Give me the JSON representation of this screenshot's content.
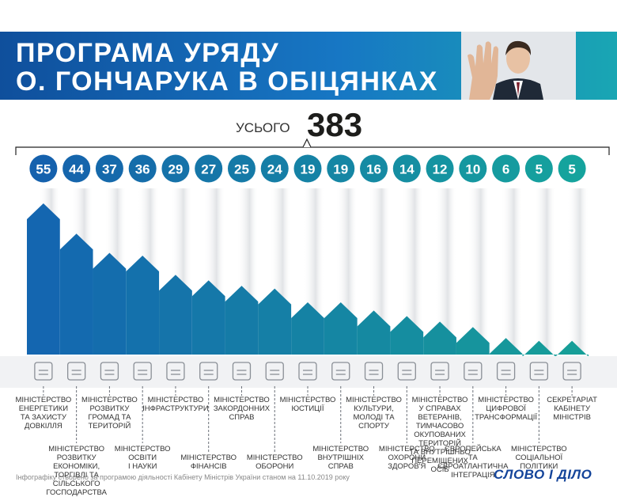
{
  "header": {
    "title_line1": "ПРОГРАМА УРЯДУ",
    "title_line2": "О. ГОНЧАРУКА В ОБІЦЯНКАХ"
  },
  "total": {
    "label": "УСЬОГО",
    "value": "383"
  },
  "colors": {
    "blue": "#1466b0",
    "teal": "#169e98",
    "circle_blue": "#1561ad",
    "circle_teal": "#15a39d"
  },
  "chart_data": {
    "type": "bar",
    "title": "ПРОГРАМА УРЯДУ О. ГОНЧАРУКА В ОБІЦЯНКАХ",
    "total": 383,
    "categories": [
      "МІНІСТЕРСТВО ЕНЕРГЕТИКИ ТА ЗАХИСТУ ДОВКІЛЛЯ",
      "МІНІСТЕРСТВО РОЗВИТКУ ЕКОНОМІКИ, ТОРГІВЛІ ТА СІЛЬСЬКОГО ГОСПОДАРСТВА",
      "МІНІСТЕРСТВО РОЗВИТКУ ГРОМАД ТА ТЕРИТОРІЙ",
      "МІНІСТЕРСТВО ОСВІТИ І НАУКИ",
      "МІНІСТЕРСТВО ІНФРАСТРУКТУРИ",
      "МІНІСТЕРСТВО ФІНАНСІВ",
      "МІНІСТЕРСТВО ЗАКОРДОННИХ СПРАВ",
      "МІНІСТЕРСТВО ОБОРОНИ",
      "МІНІСТЕРСТВО ЮСТИЦІЇ",
      "МІНІСТЕРСТВО ВНУТРІШНІХ СПРАВ",
      "МІНІСТЕРСТВО КУЛЬТУРИ, МОЛОДІ ТА СПОРТУ",
      "МІНІСТЕРСТВО ОХОРОНИ ЗДОРОВ'Я",
      "МІНІСТЕРСТВО У СПРАВАХ ВЕТЕРАНІВ, ТИМЧАСОВО ОКУПОВАНИХ ТЕРИТОРІЙ ТА ВНУТРІШНЬО ПЕРЕМІЩЕНИХ ОСІБ",
      "ЄВРОПЕЙСЬКА ТА ЄВРОАТЛАНТИЧНА ІНТЕГРАЦІЯ",
      "МІНІСТЕРСТВО ЦИФРОВОЇ ТРАНСФОРМАЦІЇ",
      "МІНІСТЕРСТВО СОЦІАЛЬНОЇ ПОЛІТИКИ",
      "СЕКРЕТАРІАТ КАБІНЕТУ МІНІСТРІВ"
    ],
    "values": [
      55,
      44,
      37,
      36,
      29,
      27,
      25,
      24,
      19,
      19,
      16,
      14,
      12,
      10,
      6,
      5,
      5
    ],
    "labels": [
      [
        "МІНІСТЕРСТВО",
        "ЕНЕРГЕТИКИ",
        "ТА ЗАХИСТУ",
        "ДОВКІЛЛЯ"
      ],
      [
        "МІНІСТЕРСТВО РОЗВИТКУ",
        "ЕКОНОМІКИ, ТОРГІВЛІ ТА",
        "СІЛЬСЬКОГО ГОСПОДАРСТВА"
      ],
      [
        "МІНІСТЕРСТВО",
        "РОЗВИТКУ",
        "ГРОМАД ТА",
        "ТЕРИТОРІЙ"
      ],
      [
        "МІНІСТЕРСТВО",
        "ОСВІТИ",
        "І НАУКИ"
      ],
      [
        "МІНІСТЕРСТВО",
        "ІНФРАСТРУКТУРИ"
      ],
      [
        "МІНІСТЕРСТВО",
        "ФІНАНСІВ"
      ],
      [
        "МІНІСТЕРСТВО",
        "ЗАКОРДОННИХ",
        "СПРАВ"
      ],
      [
        "МІНІСТЕРСТВО",
        "ОБОРОНИ"
      ],
      [
        "МІНІСТЕРСТВО",
        "ЮСТИЦІЇ"
      ],
      [
        "МІНІСТЕРСТВО",
        "ВНУТРІШНІХ",
        "СПРАВ"
      ],
      [
        "МІНІСТЕРСТВО",
        "КУЛЬТУРИ,",
        "МОЛОДІ ТА",
        "СПОРТУ"
      ],
      [
        "МІНІСТЕРСТВО",
        "ОХОРОНИ",
        "ЗДОРОВ'Я"
      ],
      [
        "МІНІСТЕРСТВО",
        "У СПРАВАХ",
        "ВЕТЕРАНІВ, ТИМЧАСОВО",
        "ОКУПОВАНИХ ТЕРИТОРІЙ",
        "ТА ВНУТРІШНЬО",
        "ПЕРЕМІЩЕНИХ ОСІБ"
      ],
      [
        "ЄВРОПЕЙСЬКА",
        "ТА ЄВРОАТЛАНТИЧНА",
        "ІНТЕГРАЦІЯ"
      ],
      [
        "МІНІСТЕРСТВО",
        "ЦИФРОВОЇ",
        "ТРАНСФОРМАЦІЇ"
      ],
      [
        "МІНІСТЕРСТВО",
        "СОЦІАЛЬНОЇ",
        "ПОЛІТИКИ"
      ],
      [
        "СЕКРЕТАРІАТ",
        "КАБІНЕТУ",
        "МІНІСТРІВ"
      ]
    ],
    "icons": [
      "power-tower-icon",
      "shopping-cart-icon",
      "map-icon",
      "books-icon",
      "city-icon",
      "buildings-icon",
      "globe-icon",
      "shield-icon",
      "scales-icon",
      "trident-badge-icon",
      "theater-masks-icon",
      "handshake-icon",
      "soldier-icon",
      "eu-nato-icon",
      "display-icon",
      "people-icon",
      "meeting-icon"
    ],
    "label_rows": [
      "top",
      "bottom",
      "top",
      "bottom",
      "top",
      "bottom",
      "top",
      "bottom",
      "top",
      "bottom",
      "top",
      "bottom",
      "top",
      "bottom",
      "top",
      "bottom",
      "top"
    ]
  },
  "footer": {
    "note": "Інфографіку створено за програмою діяльності Кабінету Міністрів України станом на 11.10.2019 року",
    "logo": "СЛОВО І ДІЛО"
  }
}
